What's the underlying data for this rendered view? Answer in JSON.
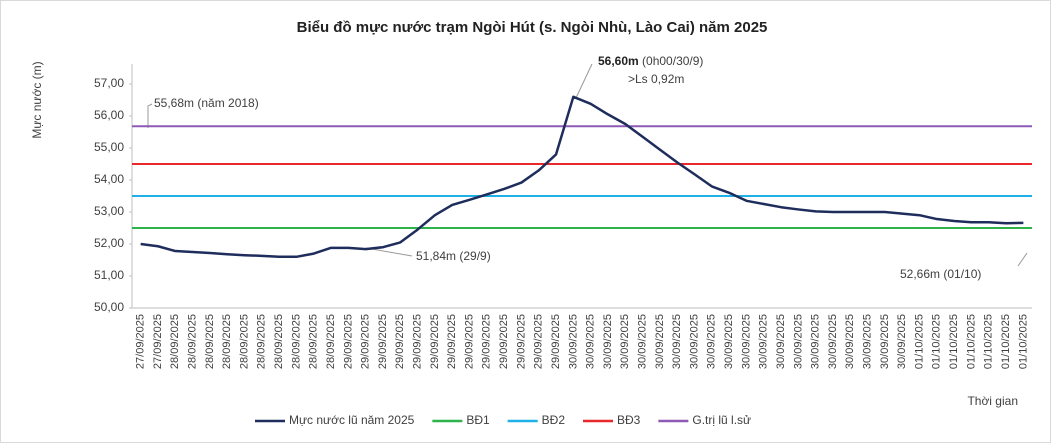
{
  "chart_data": {
    "type": "line",
    "title": "Biểu đồ mực nước trạm Ngòi Hút (s. Ngòi Nhù, Lào Cai) năm 2025",
    "y_label": "Mực nước (m)",
    "x_label": "Thời gian",
    "categories": [
      "27/09/2025",
      "27/09/2025",
      "28/09/2025",
      "28/09/2025",
      "28/09/2025",
      "28/09/2025",
      "28/09/2025",
      "28/09/2025",
      "28/09/2025",
      "28/09/2025",
      "28/09/2025",
      "28/09/2025",
      "29/09/2025",
      "29/09/2025",
      "29/09/2025",
      "29/09/2025",
      "29/09/2025",
      "29/09/2025",
      "29/09/2025",
      "29/09/2025",
      "29/09/2025",
      "29/09/2025",
      "29/09/2025",
      "29/09/2025",
      "29/09/2025",
      "30/09/2025",
      "30/09/2025",
      "30/09/2025",
      "30/09/2025",
      "30/09/2025",
      "30/09/2025",
      "30/09/2025",
      "30/09/2025",
      "30/09/2025",
      "30/09/2025",
      "30/09/2025",
      "30/09/2025",
      "30/09/2025",
      "30/09/2025",
      "30/09/2025",
      "30/09/2025",
      "30/09/2025",
      "30/09/2025",
      "30/09/2025",
      "30/09/2025",
      "01/10/2025",
      "01/10/2025",
      "01/10/2025",
      "01/10/2025",
      "01/10/2025",
      "01/10/2025",
      "01/10/2025"
    ],
    "series": [
      {
        "name": "Mực nước lũ năm 2025",
        "color": "#1f2d5c",
        "values": [
          52.0,
          51.93,
          51.78,
          51.75,
          51.72,
          51.68,
          51.65,
          51.63,
          51.6,
          51.6,
          51.7,
          51.88,
          51.88,
          51.84,
          51.9,
          52.05,
          52.45,
          52.9,
          53.22,
          53.38,
          53.55,
          53.72,
          53.92,
          54.3,
          54.8,
          56.6,
          56.38,
          56.05,
          55.75,
          55.35,
          54.95,
          54.55,
          54.18,
          53.8,
          53.6,
          53.35,
          53.25,
          53.15,
          53.08,
          53.02,
          53.0,
          53.0,
          53.0,
          53.0,
          52.95,
          52.9,
          52.78,
          52.72,
          52.68,
          52.68,
          52.65,
          52.66
        ]
      }
    ],
    "reference_lines": [
      {
        "name": "BĐ1",
        "color": "#2eb34a",
        "value": 52.5
      },
      {
        "name": "BĐ2",
        "color": "#1fb0e8",
        "value": 53.5
      },
      {
        "name": "BĐ3",
        "color": "#e8282b",
        "value": 54.5
      },
      {
        "name": "G.trị lũ l.sử",
        "color": "#8e5ab5",
        "value": 55.68
      }
    ],
    "ylim": [
      50,
      57
    ],
    "yticks": [
      {
        "value": 50,
        "label": "50,00"
      },
      {
        "value": 51,
        "label": "51,00"
      },
      {
        "value": 52,
        "label": "52,00"
      },
      {
        "value": 53,
        "label": "53,00"
      },
      {
        "value": 54,
        "label": "54,00"
      },
      {
        "value": 55,
        "label": "55,00"
      },
      {
        "value": 56,
        "label": "56,00"
      },
      {
        "value": 57,
        "label": "57,00"
      }
    ],
    "annotations": {
      "peak_value": "56,60m",
      "peak_time": " (0h00/30/9)",
      "peak_excess": ">Ls 0,92m",
      "historic": "55,68m (năm 2018)",
      "low": "51,84m (29/9)",
      "end": "52,66m (01/10)"
    },
    "legend": "bottom"
  }
}
